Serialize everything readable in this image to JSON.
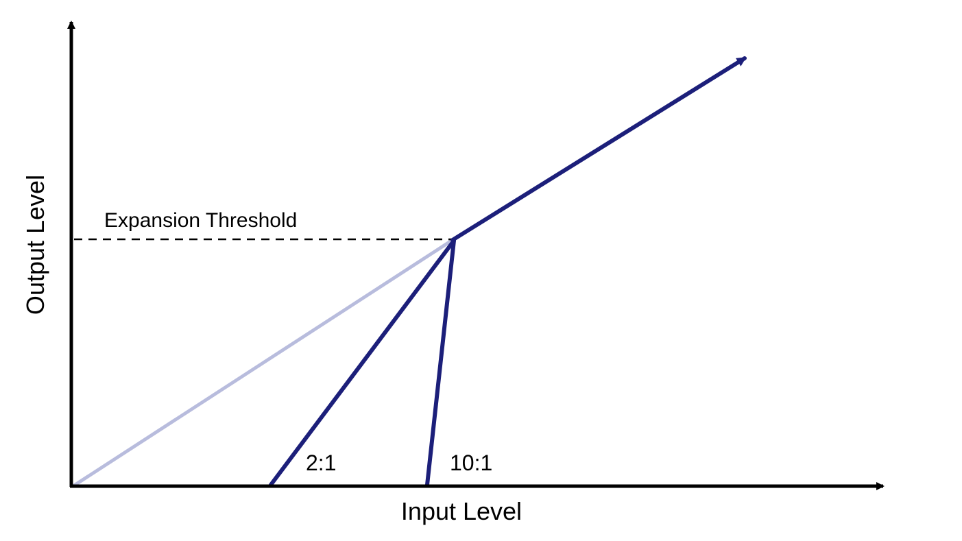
{
  "labels": {
    "x_axis": "Input Level",
    "y_axis": "Output Level",
    "threshold": "Expansion Threshold",
    "ratio_2_1": "2:1",
    "ratio_10_1": "10:1"
  },
  "colors": {
    "axis": "#000000",
    "curve": "#1c1f7a",
    "unity_line": "#b8bcdd",
    "threshold_line": "#000000"
  }
}
